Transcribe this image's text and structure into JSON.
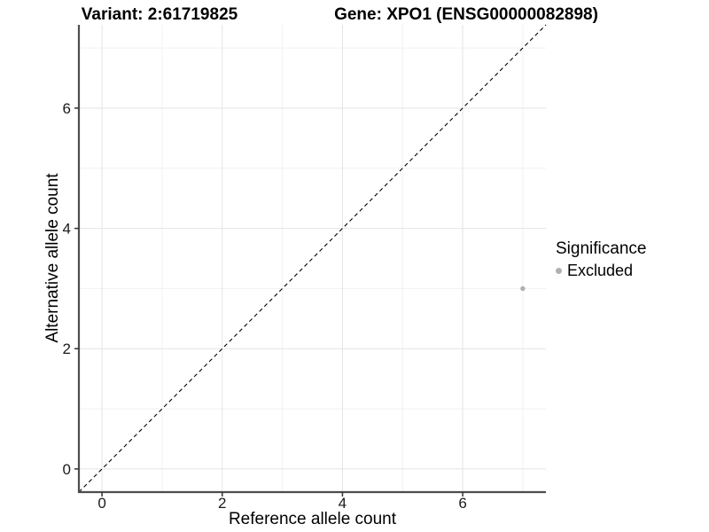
{
  "chart_data": {
    "type": "scatter",
    "titles": [
      "Variant: 2:61719825",
      "Gene: XPO1 (ENSG00000082898)"
    ],
    "xlabel": "Reference allele count",
    "ylabel": "Alternative allele count",
    "xlim": [
      -0.385,
      7.385
    ],
    "ylim": [
      -0.385,
      7.385
    ],
    "x_ticks": [
      0,
      2,
      4,
      6
    ],
    "y_ticks": [
      0,
      2,
      4,
      6
    ],
    "x_minor": [
      1,
      3,
      5,
      7
    ],
    "y_minor": [
      1,
      3,
      5,
      7
    ],
    "grid": "major and minor gridlines, light gray on white",
    "identity_line": {
      "style": "dashed",
      "slope": 1,
      "intercept": 0
    },
    "points": [
      {
        "x": 7,
        "y": 3,
        "significance": "Excluded"
      }
    ],
    "legend": {
      "title": "Significance",
      "position": "right",
      "items": [
        {
          "label": "Excluded",
          "color": "#b0b0b0"
        }
      ]
    }
  },
  "colors": {
    "background": "#ffffff",
    "grid_major": "#e4e4e4",
    "grid_minor": "#f1f1f1",
    "axis_line": "#4d4d4d",
    "tick_mark": "#333333",
    "tick_text": "#1a1a1a",
    "title_text": "#000000",
    "point": "#b0b0b0",
    "identity_line": "#000000"
  }
}
